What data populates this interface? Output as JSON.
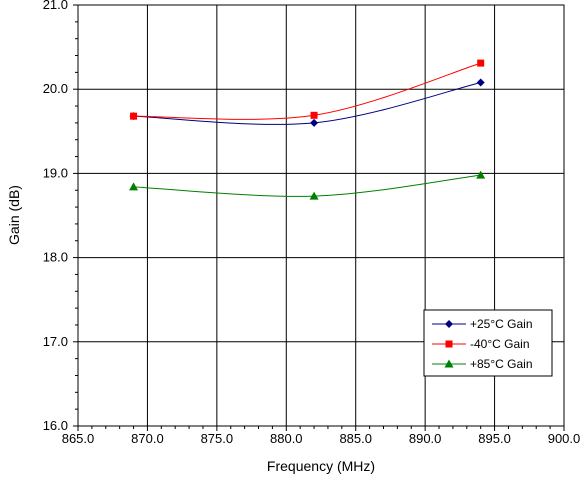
{
  "chart_data": {
    "type": "line",
    "title": "",
    "xlabel": "Frequency (MHz)",
    "ylabel": "Gain (dB)",
    "xlim": [
      865.0,
      900.0
    ],
    "ylim": [
      16.0,
      21.0
    ],
    "x_ticks": [
      "865.0",
      "870.0",
      "875.0",
      "880.0",
      "885.0",
      "890.0",
      "895.0",
      "900.0"
    ],
    "y_ticks": [
      "16.0",
      "17.0",
      "18.0",
      "19.0",
      "20.0",
      "21.0"
    ],
    "grid": true,
    "smooth": true,
    "legend_position": "bottom-right",
    "series": [
      {
        "name": "+25°C Gain",
        "color": "#000080",
        "marker": "diamond",
        "x": [
          869.0,
          882.0,
          894.0
        ],
        "y": [
          19.68,
          19.6,
          20.08
        ]
      },
      {
        "name": "-40°C Gain",
        "color": "#ff0000",
        "marker": "square",
        "x": [
          869.0,
          882.0,
          894.0
        ],
        "y": [
          19.68,
          19.69,
          20.31
        ]
      },
      {
        "name": "+85°C Gain",
        "color": "#008000",
        "marker": "triangle",
        "x": [
          869.0,
          882.0,
          894.0
        ],
        "y": [
          18.84,
          18.73,
          18.98
        ]
      }
    ]
  }
}
